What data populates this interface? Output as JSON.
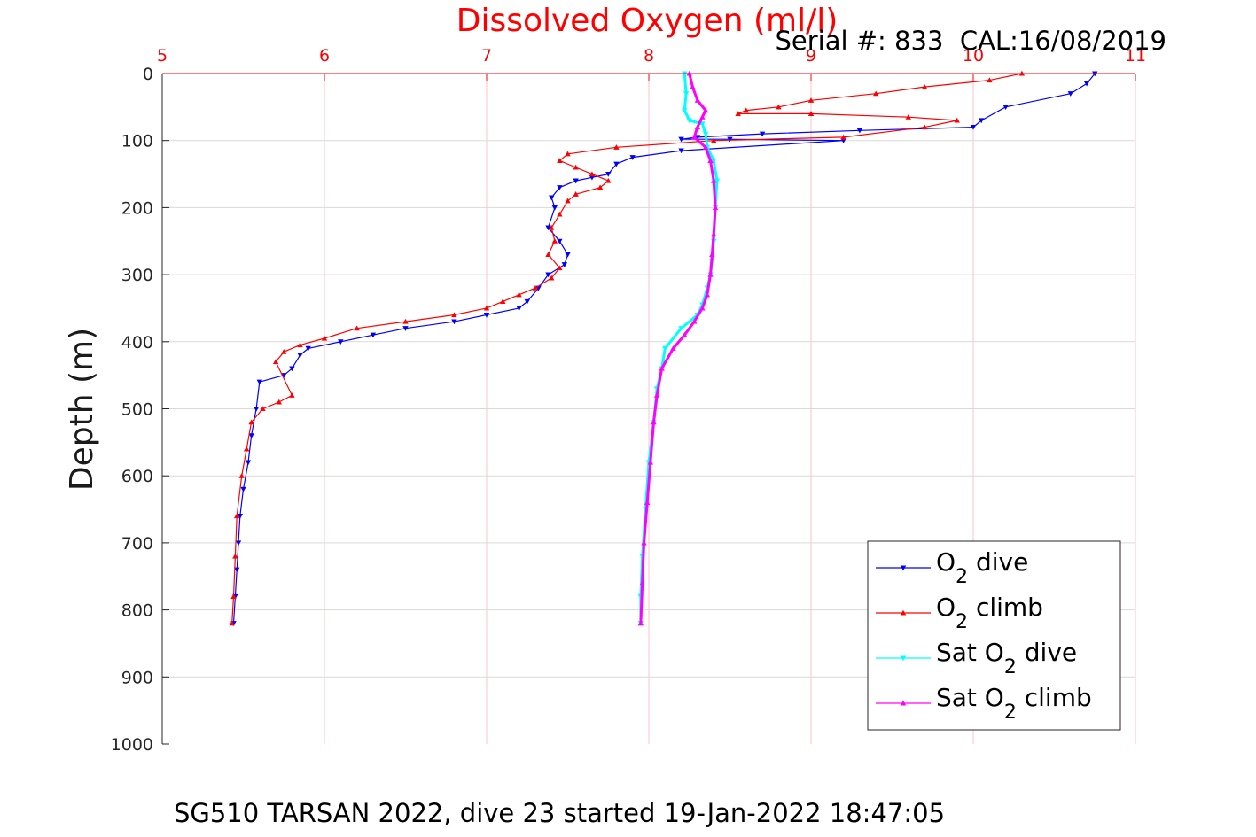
{
  "chart_data": {
    "type": "line",
    "title": "Dissolved Oxygen (ml/l)",
    "serial_label": "Serial #: 833  CAL:16/08/2019",
    "caption": "SG510 TARSAN 2022, dive 23 started 19-Jan-2022 18:47:05",
    "ylabel": "Depth (m)",
    "xlim": [
      5,
      11
    ],
    "ylim": [
      0,
      1000
    ],
    "y_reversed": true,
    "x_axis_position": "top",
    "grid": true,
    "legend_position": "bottom-right",
    "xticks": [
      "5",
      "6",
      "7",
      "8",
      "9",
      "10",
      "11"
    ],
    "yticks": [
      "0",
      "100",
      "200",
      "300",
      "400",
      "500",
      "600",
      "700",
      "800",
      "900",
      "1000"
    ],
    "colors": {
      "title": "#ff0000",
      "x_tick_labels": "#ff0000",
      "x_grid": "#ffc0cb",
      "y_grid": "#d9d9d9"
    },
    "series": [
      {
        "name_main": "O",
        "name_sub": "2",
        "name_rest": " dive",
        "color": "#0000ff",
        "marker": "triangle-down",
        "x": [
          10.75,
          10.7,
          10.6,
          10.2,
          10.05,
          10.0,
          9.3,
          8.7,
          8.3,
          8.2,
          8.5,
          9.2,
          8.2,
          7.9,
          7.8,
          7.75,
          7.65,
          7.55,
          7.45,
          7.4,
          7.42,
          7.38,
          7.45,
          7.5,
          7.48,
          7.38,
          7.32,
          7.25,
          7.2,
          7.0,
          6.8,
          6.5,
          6.3,
          6.1,
          5.9,
          5.85,
          5.8,
          5.75,
          5.6,
          5.58,
          5.55,
          5.53,
          5.5,
          5.48,
          5.47,
          5.46,
          5.45,
          5.44
        ],
        "y": [
          0,
          15,
          30,
          50,
          70,
          80,
          85,
          90,
          95,
          98,
          98,
          100,
          115,
          125,
          135,
          150,
          155,
          160,
          170,
          185,
          200,
          230,
          250,
          270,
          285,
          300,
          320,
          340,
          350,
          360,
          370,
          380,
          390,
          400,
          410,
          420,
          440,
          450,
          460,
          500,
          540,
          580,
          620,
          660,
          700,
          740,
          780,
          820
        ]
      },
      {
        "name_main": "O",
        "name_sub": "2",
        "name_rest": " climb",
        "color": "#ff0000",
        "marker": "triangle-up",
        "x": [
          10.3,
          10.1,
          9.7,
          9.4,
          9.0,
          8.8,
          8.6,
          8.55,
          9.0,
          9.6,
          9.9,
          9.7,
          9.2,
          8.4,
          7.8,
          7.5,
          7.45,
          7.55,
          7.65,
          7.75,
          7.7,
          7.55,
          7.5,
          7.45,
          7.4,
          7.42,
          7.38,
          7.45,
          7.4,
          7.3,
          7.2,
          7.1,
          7.0,
          6.8,
          6.5,
          6.2,
          6.0,
          5.85,
          5.75,
          5.7,
          5.8,
          5.72,
          5.62,
          5.55,
          5.52,
          5.49,
          5.46,
          5.45,
          5.44,
          5.43
        ],
        "y": [
          0,
          10,
          20,
          30,
          40,
          50,
          55,
          60,
          60,
          65,
          70,
          80,
          95,
          100,
          110,
          120,
          130,
          140,
          150,
          160,
          170,
          180,
          190,
          210,
          230,
          250,
          270,
          290,
          305,
          320,
          330,
          340,
          350,
          360,
          370,
          380,
          395,
          405,
          415,
          430,
          480,
          490,
          500,
          520,
          560,
          600,
          660,
          720,
          780,
          820
        ]
      },
      {
        "name_main": "Sat O",
        "name_sub": "2",
        "name_rest": " dive",
        "color": "#00ffff",
        "marker": "triangle-down",
        "x": [
          8.22,
          8.23,
          8.22,
          8.25,
          8.33,
          8.35,
          8.36,
          8.4,
          8.42,
          8.41,
          8.4,
          8.39,
          8.38,
          8.36,
          8.33,
          8.3,
          8.2,
          8.1,
          8.08,
          8.05,
          8.03,
          8.0,
          7.98,
          7.96,
          7.95,
          7.95
        ],
        "y": [
          0,
          30,
          55,
          70,
          75,
          90,
          110,
          130,
          160,
          200,
          250,
          280,
          300,
          320,
          345,
          360,
          380,
          410,
          440,
          470,
          520,
          580,
          650,
          720,
          780,
          820
        ]
      },
      {
        "name_main": "Sat O",
        "name_sub": "2",
        "name_rest": " climb",
        "color": "#ff00ff",
        "marker": "triangle-up",
        "x": [
          8.25,
          8.27,
          8.3,
          8.35,
          8.33,
          8.3,
          8.28,
          8.35,
          8.38,
          8.4,
          8.41,
          8.4,
          8.39,
          8.38,
          8.36,
          8.33,
          8.28,
          8.22,
          8.15,
          8.08,
          8.05,
          8.03,
          8.01,
          7.99,
          7.97,
          7.96,
          7.95
        ],
        "y": [
          0,
          20,
          40,
          55,
          65,
          80,
          95,
          110,
          130,
          160,
          200,
          240,
          270,
          300,
          330,
          350,
          370,
          390,
          410,
          440,
          480,
          520,
          580,
          640,
          700,
          760,
          820
        ]
      }
    ]
  }
}
